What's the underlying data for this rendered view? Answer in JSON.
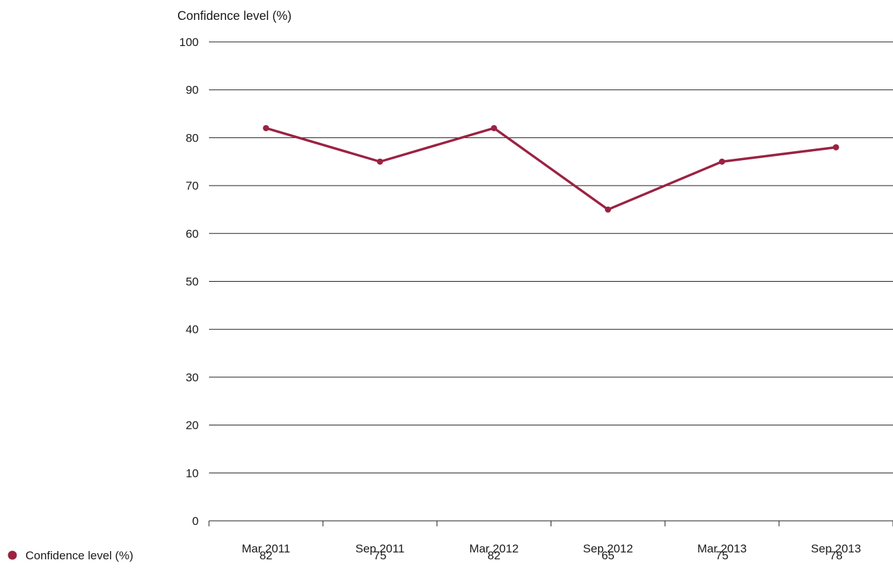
{
  "chart_data": {
    "type": "line",
    "title": "Confidence level (%)",
    "xlabel": "",
    "ylabel": "",
    "categories": [
      "Mar 2011",
      "Sep 2011",
      "Mar 2012",
      "Sep 2012",
      "Mar 2013",
      "Sep 2013"
    ],
    "series": [
      {
        "name": "Confidence level (%)",
        "values": [
          82,
          75,
          82,
          65,
          75,
          78
        ],
        "color": "#9b2242"
      }
    ],
    "ylim": [
      0,
      100
    ],
    "yticks": [
      0,
      10,
      20,
      30,
      40,
      50,
      60,
      70,
      80,
      90,
      100
    ],
    "grid": true,
    "legend": "bottom-left data table"
  },
  "colors": {
    "series": "#9b2242",
    "grid": "#1a1a1a",
    "text": "#1a1a1a"
  }
}
